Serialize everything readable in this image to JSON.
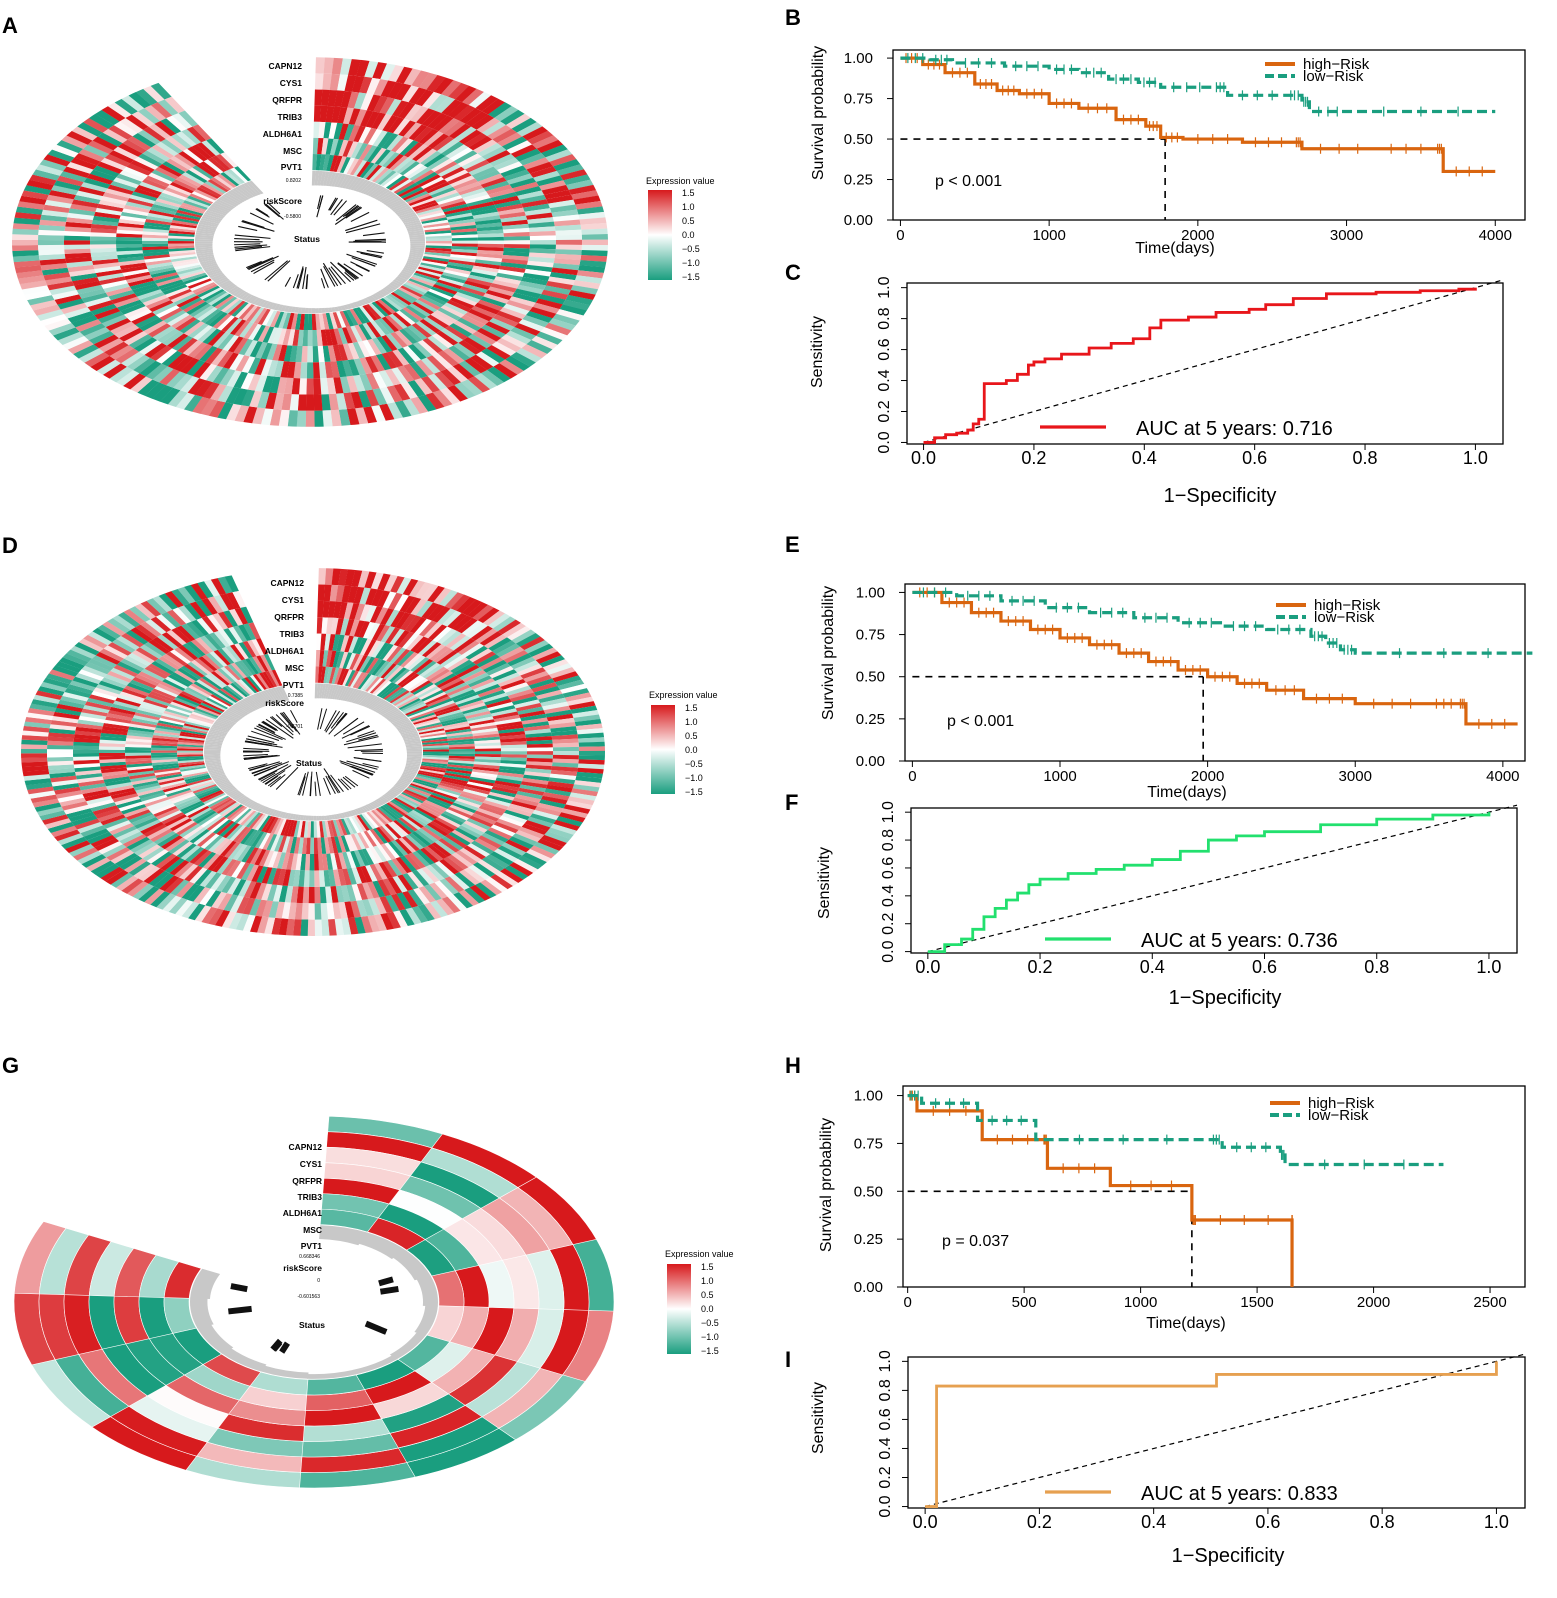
{
  "panel_labels": [
    "A",
    "B",
    "C",
    "D",
    "E",
    "F",
    "G",
    "H",
    "I"
  ],
  "heatmap": {
    "genes": [
      "CAPN12",
      "CYS1",
      "QRFPR",
      "TRIB3",
      "ALDH6A1",
      "MSC",
      "PVT1"
    ],
    "risk_label": "riskScore",
    "status_label": "Status",
    "legend_title": "Expression value",
    "legend_ticks": [
      "1.5",
      "1.0",
      "0.5",
      "0.0",
      "−0.5",
      "−1.0",
      "−1.5"
    ],
    "risk_ticks": [
      [
        "0.8202",
        "-0.5800"
      ],
      [
        "0.7385",
        "-0.6701"
      ],
      [
        "0.668346",
        "0",
        "-0.601563"
      ]
    ],
    "colors": {
      "high": "#d7191c",
      "mid": "#ffffff",
      "low": "#1a9e7f",
      "ring": "#c8c8c8"
    }
  },
  "chart_data": [
    {
      "type": "line",
      "panel": "B",
      "title": "",
      "xlabel": "Time(days)",
      "ylabel": "Survival probability",
      "xlim": [
        -50,
        4200
      ],
      "ylim": [
        0,
        1.05
      ],
      "xticks": [
        "0",
        "1000",
        "2000",
        "3000",
        "4000"
      ],
      "yticks": [
        "0.00",
        "0.25",
        "0.50",
        "0.75",
        "1.00"
      ],
      "series": [
        {
          "name": "high−Risk",
          "color": "#d9650f",
          "x": [
            0,
            150,
            300,
            500,
            650,
            800,
            1000,
            1200,
            1450,
            1650,
            1750,
            1900,
            2300,
            2650,
            2700,
            3200,
            3600,
            3650,
            4000
          ],
          "y": [
            1.0,
            0.96,
            0.91,
            0.84,
            0.8,
            0.78,
            0.72,
            0.69,
            0.62,
            0.58,
            0.51,
            0.5,
            0.48,
            0.48,
            0.44,
            0.44,
            0.44,
            0.3,
            0.3
          ]
        },
        {
          "name": "low−Risk",
          "color": "#1a9e7f",
          "x": [
            0,
            200,
            350,
            700,
            1000,
            1200,
            1400,
            1600,
            1750,
            2100,
            2200,
            2600,
            2700,
            2750,
            3000,
            4000
          ],
          "y": [
            1.0,
            0.99,
            0.97,
            0.95,
            0.93,
            0.91,
            0.87,
            0.85,
            0.82,
            0.82,
            0.77,
            0.77,
            0.73,
            0.67,
            0.67,
            0.67
          ]
        }
      ],
      "median_x": 1780,
      "p_value": "p < 0.001"
    },
    {
      "type": "line",
      "panel": "C",
      "xlabel": "1−Specificity",
      "ylabel": "Sensitivity",
      "xlim": [
        -0.03,
        1.05
      ],
      "ylim": [
        -0.01,
        1.03
      ],
      "xticks": [
        "0.0",
        "0.2",
        "0.4",
        "0.6",
        "0.8",
        "1.0"
      ],
      "yticks": [
        "0.0",
        "0.2",
        "0.4",
        "0.6",
        "0.8",
        "1.0"
      ],
      "series": [
        {
          "name": "AUC at 5 years: 0.716",
          "color": "#e8161b",
          "x": [
            0,
            0.02,
            0.04,
            0.06,
            0.08,
            0.09,
            0.1,
            0.11,
            0.11,
            0.13,
            0.15,
            0.17,
            0.19,
            0.2,
            0.22,
            0.25,
            0.3,
            0.34,
            0.38,
            0.41,
            0.43,
            0.48,
            0.53,
            0.59,
            0.62,
            0.67,
            0.73,
            0.82,
            0.9,
            0.97,
            1.0
          ],
          "y": [
            0,
            0.03,
            0.05,
            0.06,
            0.08,
            0.12,
            0.15,
            0.2,
            0.38,
            0.38,
            0.4,
            0.44,
            0.5,
            0.52,
            0.54,
            0.57,
            0.61,
            0.64,
            0.67,
            0.74,
            0.79,
            0.81,
            0.84,
            0.86,
            0.89,
            0.93,
            0.96,
            0.97,
            0.98,
            0.99,
            1.0
          ]
        }
      ]
    },
    {
      "type": "line",
      "panel": "E",
      "xlabel": "Time(days)",
      "ylabel": "Survival probability",
      "xlim": [
        -50,
        4150
      ],
      "ylim": [
        0,
        1.05
      ],
      "xticks": [
        "0",
        "1000",
        "2000",
        "3000",
        "4000"
      ],
      "yticks": [
        "0.00",
        "0.25",
        "0.50",
        "0.75",
        "1.00"
      ],
      "series": [
        {
          "name": "high−Risk",
          "color": "#d9650f",
          "x": [
            0,
            200,
            400,
            600,
            800,
            1000,
            1200,
            1400,
            1600,
            1800,
            2000,
            2200,
            2400,
            2650,
            3000,
            3500,
            3700,
            3750,
            4100
          ],
          "y": [
            1.0,
            0.94,
            0.88,
            0.83,
            0.78,
            0.73,
            0.69,
            0.64,
            0.59,
            0.54,
            0.5,
            0.46,
            0.42,
            0.37,
            0.34,
            0.34,
            0.34,
            0.22,
            0.22
          ]
        },
        {
          "name": "low−Risk",
          "color": "#1a9e7f",
          "x": [
            0,
            300,
            600,
            900,
            1200,
            1500,
            1800,
            2100,
            2400,
            2700,
            2800,
            2900,
            3000,
            4200
          ],
          "y": [
            1.0,
            0.98,
            0.95,
            0.91,
            0.88,
            0.85,
            0.82,
            0.8,
            0.78,
            0.74,
            0.7,
            0.66,
            0.64,
            0.64
          ]
        }
      ],
      "median_x": 1970,
      "p_value": "p < 0.001"
    },
    {
      "type": "line",
      "panel": "F",
      "xlabel": "1−Specificity",
      "ylabel": "Sensitivity",
      "xlim": [
        -0.03,
        1.05
      ],
      "ylim": [
        -0.01,
        1.03
      ],
      "xticks": [
        "0.0",
        "0.2",
        "0.4",
        "0.6",
        "0.8",
        "1.0"
      ],
      "yticks": [
        "0.0",
        "0.2",
        "0.4",
        "0.6",
        "0.8",
        "1.0"
      ],
      "series": [
        {
          "name": "AUC at 5 years: 0.736",
          "color": "#22e06e",
          "x": [
            0,
            0.03,
            0.06,
            0.08,
            0.1,
            0.12,
            0.14,
            0.16,
            0.18,
            0.2,
            0.25,
            0.3,
            0.35,
            0.4,
            0.45,
            0.5,
            0.55,
            0.6,
            0.7,
            0.8,
            0.9,
            1.0
          ],
          "y": [
            0,
            0.05,
            0.09,
            0.16,
            0.25,
            0.31,
            0.37,
            0.42,
            0.48,
            0.52,
            0.56,
            0.59,
            0.62,
            0.66,
            0.72,
            0.8,
            0.83,
            0.86,
            0.91,
            0.95,
            0.98,
            1.0
          ]
        }
      ]
    },
    {
      "type": "line",
      "panel": "H",
      "xlabel": "Time(days)",
      "ylabel": "Survival probability",
      "xlim": [
        -20,
        2650
      ],
      "ylim": [
        0,
        1.05
      ],
      "xticks": [
        "0",
        "500",
        "1000",
        "1500",
        "2000",
        "2500"
      ],
      "yticks": [
        "0.00",
        "0.25",
        "0.50",
        "0.75",
        "1.00"
      ],
      "series": [
        {
          "name": "high−Risk",
          "color": "#d9650f",
          "x": [
            0,
            40,
            320,
            580,
            600,
            870,
            1220,
            1240,
            1650,
            1650
          ],
          "y": [
            1.0,
            0.92,
            0.77,
            0.77,
            0.62,
            0.53,
            0.35,
            0.35,
            0.35,
            0.0
          ]
        },
        {
          "name": "low−Risk",
          "color": "#1a9e7f",
          "x": [
            0,
            60,
            300,
            550,
            1300,
            1350,
            1600,
            1620,
            2300
          ],
          "y": [
            1.0,
            0.96,
            0.87,
            0.77,
            0.77,
            0.73,
            0.69,
            0.64,
            0.64
          ]
        }
      ],
      "median_x": 1220,
      "p_value": "p = 0.037"
    },
    {
      "type": "line",
      "panel": "I",
      "xlabel": "1−Specificity",
      "ylabel": "Sensitivity",
      "xlim": [
        -0.03,
        1.05
      ],
      "ylim": [
        -0.01,
        1.03
      ],
      "xticks": [
        "0.0",
        "0.2",
        "0.4",
        "0.6",
        "0.8",
        "1.0"
      ],
      "yticks": [
        "0.0",
        "0.2",
        "0.4",
        "0.6",
        "0.8",
        "1.0"
      ],
      "series": [
        {
          "name": "AUC at 5 years: 0.833",
          "color": "#e6a050",
          "x": [
            0,
            0.02,
            0.02,
            0.51,
            0.51,
            1.0,
            1.0
          ],
          "y": [
            0,
            0,
            0.83,
            0.83,
            0.91,
            0.91,
            1.0
          ]
        }
      ]
    }
  ]
}
